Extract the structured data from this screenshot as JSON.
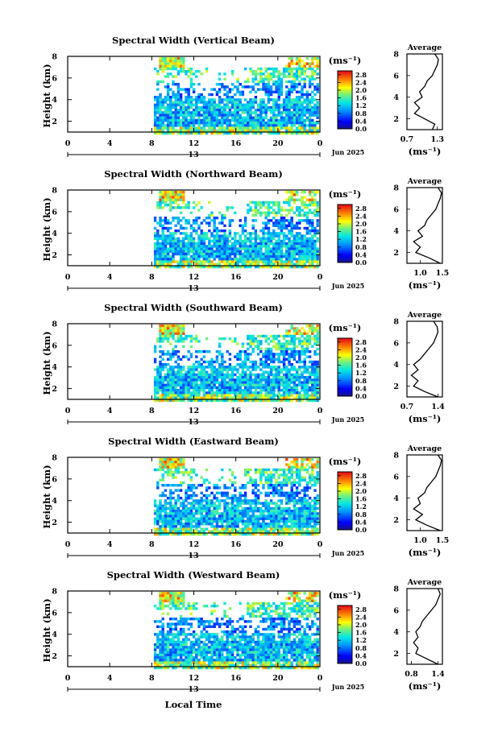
{
  "chart_data": [
    {
      "type": "heatmap",
      "title": "Spectral Width (Vertical Beam)",
      "ylabel": "Height (km)",
      "xlim": [
        0,
        24
      ],
      "ylim": [
        1,
        8
      ],
      "x_ticks": [
        "0",
        "4",
        "8",
        "12",
        "16",
        "20",
        "0"
      ],
      "y_ticks": [
        "2",
        "4",
        "6",
        "8"
      ],
      "day_label": "13",
      "date_label": "Jun 2025",
      "colorbar": {
        "unit": "(ms⁻¹)",
        "ticks": [
          "0.0",
          "0.4",
          "0.8",
          "1.2",
          "1.6",
          "2.0",
          "2.4",
          "2.8"
        ],
        "range": [
          0,
          3
        ]
      },
      "average": {
        "title": "Average",
        "unit": "(ms⁻¹)",
        "x_ticks": [
          "0.7",
          "1.3"
        ],
        "xlim": [
          0.7,
          1.4
        ],
        "profile": [
          [
            1.2,
            1
          ],
          [
            1.25,
            1.5
          ],
          [
            1.05,
            2
          ],
          [
            0.85,
            2.5
          ],
          [
            0.95,
            3
          ],
          [
            0.85,
            3.5
          ],
          [
            1.0,
            4
          ],
          [
            0.95,
            4.5
          ],
          [
            1.05,
            5
          ],
          [
            1.1,
            5.5
          ],
          [
            1.2,
            6
          ],
          [
            1.25,
            6.5
          ],
          [
            1.3,
            7
          ],
          [
            1.32,
            7.5
          ],
          [
            1.25,
            8
          ]
        ]
      }
    },
    {
      "type": "heatmap",
      "title": "Spectral Width (Northward Beam)",
      "ylabel": "Height (km)",
      "xlim": [
        0,
        24
      ],
      "ylim": [
        1,
        8
      ],
      "x_ticks": [
        "0",
        "4",
        "8",
        "12",
        "16",
        "20",
        "0"
      ],
      "y_ticks": [
        "2",
        "4",
        "6",
        "8"
      ],
      "day_label": "13",
      "date_label": "Jun 2025",
      "colorbar": {
        "unit": "(ms⁻¹)",
        "ticks": [
          "0.0",
          "0.4",
          "0.8",
          "1.2",
          "1.6",
          "2.0",
          "2.4",
          "2.8"
        ],
        "range": [
          0,
          3
        ]
      },
      "average": {
        "title": "Average",
        "unit": "(ms⁻¹)",
        "x_ticks": [
          "1.0",
          "1.5"
        ],
        "xlim": [
          0.7,
          1.5
        ],
        "profile": [
          [
            1.45,
            1
          ],
          [
            1.2,
            1.5
          ],
          [
            0.9,
            2
          ],
          [
            1.0,
            2.5
          ],
          [
            0.85,
            3
          ],
          [
            1.05,
            3.5
          ],
          [
            0.95,
            4
          ],
          [
            1.1,
            4.5
          ],
          [
            1.15,
            5
          ],
          [
            1.25,
            5.5
          ],
          [
            1.35,
            6
          ],
          [
            1.4,
            6.5
          ],
          [
            1.45,
            7
          ],
          [
            1.48,
            7.5
          ],
          [
            1.4,
            8
          ]
        ]
      }
    },
    {
      "type": "heatmap",
      "title": "Spectral Width (Southward Beam)",
      "ylabel": "Height (km)",
      "xlim": [
        0,
        24
      ],
      "ylim": [
        1,
        8
      ],
      "x_ticks": [
        "0",
        "4",
        "8",
        "12",
        "16",
        "20",
        "0"
      ],
      "y_ticks": [
        "2",
        "4",
        "6",
        "8"
      ],
      "day_label": "13",
      "date_label": "Jun 2025",
      "colorbar": {
        "unit": "(ms⁻¹)",
        "ticks": [
          "0.0",
          "0.4",
          "0.8",
          "1.2",
          "1.6",
          "2.0",
          "2.4",
          "2.8"
        ],
        "range": [
          0,
          3
        ]
      },
      "average": {
        "title": "Average",
        "unit": "(ms⁻¹)",
        "x_ticks": [
          "0.7",
          "1.4"
        ],
        "xlim": [
          0.7,
          1.5
        ],
        "profile": [
          [
            1.4,
            1
          ],
          [
            1.1,
            1.5
          ],
          [
            0.85,
            2
          ],
          [
            0.95,
            2.5
          ],
          [
            0.8,
            3
          ],
          [
            0.95,
            3.5
          ],
          [
            0.85,
            4
          ],
          [
            1.0,
            4.5
          ],
          [
            1.1,
            5
          ],
          [
            1.2,
            5.5
          ],
          [
            1.3,
            6
          ],
          [
            1.35,
            6.5
          ],
          [
            1.4,
            7
          ],
          [
            1.38,
            7.5
          ],
          [
            1.3,
            8
          ]
        ]
      }
    },
    {
      "type": "heatmap",
      "title": "Spectral Width (Eastward Beam)",
      "ylabel": "Height (km)",
      "xlim": [
        0,
        24
      ],
      "ylim": [
        1,
        8
      ],
      "x_ticks": [
        "0",
        "4",
        "8",
        "12",
        "16",
        "20",
        "0"
      ],
      "y_ticks": [
        "2",
        "4",
        "6",
        "8"
      ],
      "day_label": "13",
      "date_label": "Jun 2025",
      "colorbar": {
        "unit": "(ms⁻¹)",
        "ticks": [
          "0.0",
          "0.4",
          "0.8",
          "1.2",
          "1.6",
          "2.0",
          "2.4",
          "2.8"
        ],
        "range": [
          0,
          3
        ]
      },
      "average": {
        "title": "Average",
        "unit": "(ms⁻¹)",
        "x_ticks": [
          "1.0",
          "1.5"
        ],
        "xlim": [
          0.7,
          1.5
        ],
        "profile": [
          [
            1.45,
            1
          ],
          [
            1.15,
            1.5
          ],
          [
            0.9,
            2
          ],
          [
            1.05,
            2.5
          ],
          [
            0.85,
            3
          ],
          [
            1.0,
            3.5
          ],
          [
            0.95,
            4
          ],
          [
            1.1,
            4.5
          ],
          [
            1.15,
            5
          ],
          [
            1.25,
            5.5
          ],
          [
            1.35,
            6
          ],
          [
            1.4,
            6.5
          ],
          [
            1.45,
            7
          ],
          [
            1.48,
            7.5
          ],
          [
            1.4,
            8
          ]
        ]
      }
    },
    {
      "type": "heatmap",
      "title": "Spectral Width (Westward Beam)",
      "ylabel": "Height (km)",
      "xlim": [
        0,
        24
      ],
      "ylim": [
        1,
        8
      ],
      "x_ticks": [
        "0",
        "4",
        "8",
        "12",
        "16",
        "20",
        "0"
      ],
      "y_ticks": [
        "2",
        "4",
        "6",
        "8"
      ],
      "day_label": "13",
      "date_label": "Jun 2025",
      "colorbar": {
        "unit": "(ms⁻¹)",
        "ticks": [
          "0.0",
          "0.4",
          "0.8",
          "1.2",
          "1.6",
          "2.0",
          "2.4",
          "2.8"
        ],
        "range": [
          0,
          3
        ]
      },
      "average": {
        "title": "Average",
        "unit": "(ms⁻¹)",
        "x_ticks": [
          "0.8",
          "1.4"
        ],
        "xlim": [
          0.7,
          1.5
        ],
        "profile": [
          [
            1.4,
            1
          ],
          [
            1.15,
            1.5
          ],
          [
            0.9,
            2
          ],
          [
            0.95,
            2.5
          ],
          [
            0.85,
            3
          ],
          [
            0.95,
            3.5
          ],
          [
            0.9,
            4
          ],
          [
            1.0,
            4.5
          ],
          [
            1.05,
            5
          ],
          [
            1.15,
            5.5
          ],
          [
            1.25,
            6
          ],
          [
            1.35,
            6.5
          ],
          [
            1.4,
            7
          ],
          [
            1.45,
            7.5
          ],
          [
            1.4,
            8
          ]
        ]
      }
    }
  ],
  "x_axis_label": "Local Time"
}
